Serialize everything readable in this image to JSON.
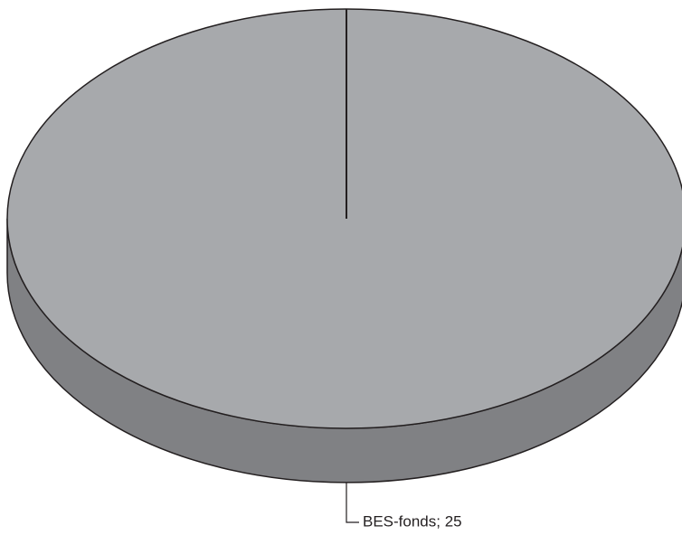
{
  "chart_data": {
    "type": "pie",
    "values": [
      25
    ],
    "value_labels": [
      "BES-fonds; 25"
    ],
    "colors": [
      "#a7a9ac"
    ],
    "side_color": "#808184"
  }
}
